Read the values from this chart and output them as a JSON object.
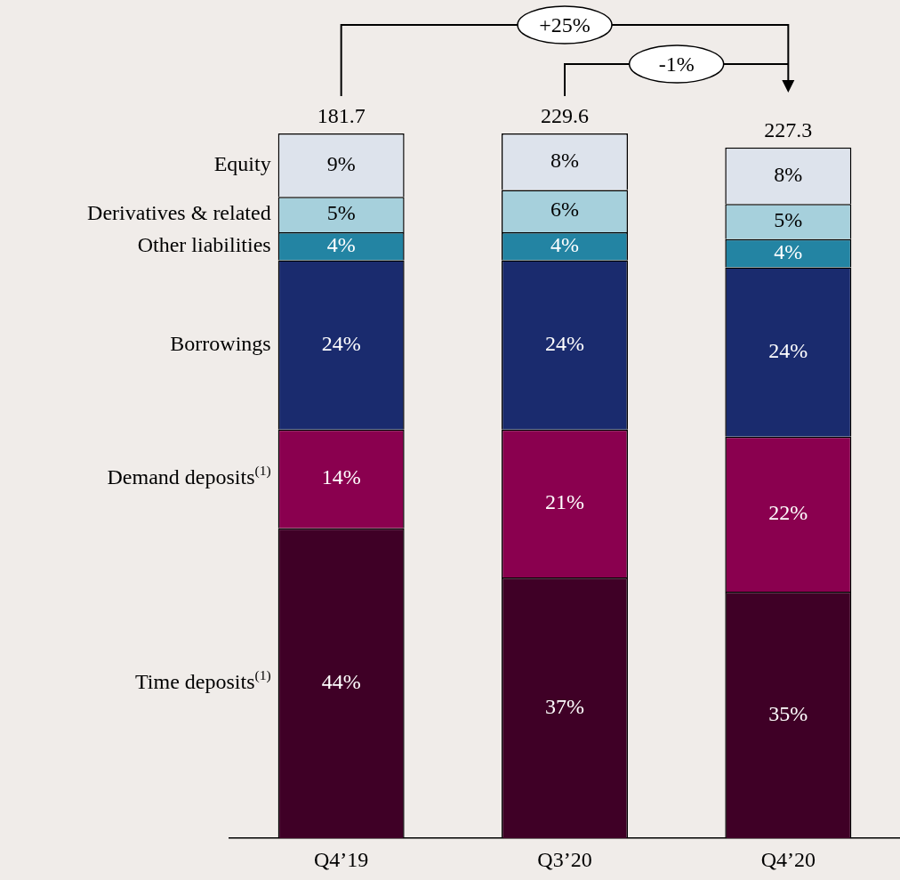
{
  "chart_data": {
    "type": "bar",
    "stacked": true,
    "categories": [
      "Q4’19",
      "Q3’20",
      "Q4’20"
    ],
    "series": [
      {
        "name": "Time deposits$^{(1)}$",
        "color": "#3f0026",
        "values": [
          44,
          37,
          35
        ],
        "value_labels": [
          "44%",
          "37%",
          "35%"
        ]
      },
      {
        "name": "Demand deposits$^{(1)}$",
        "color": "#8a004f",
        "values": [
          14,
          21,
          22
        ],
        "value_labels": [
          "14%",
          "21%",
          "22%"
        ]
      },
      {
        "name": "Borrowings",
        "color": "#1a2b6e",
        "values": [
          24,
          24,
          24
        ],
        "value_labels": [
          "24%",
          "24%",
          "24%"
        ]
      },
      {
        "name": "Other liabilities",
        "color": "#2384a3",
        "values": [
          4,
          4,
          4
        ],
        "value_labels": [
          "4%",
          "4%",
          "4%"
        ]
      },
      {
        "name": "Derivatives & related",
        "color": "#a6d0dc",
        "values": [
          5,
          6,
          5
        ],
        "value_labels": [
          "5%",
          "6%",
          "5%"
        ]
      },
      {
        "name": "Equity",
        "color": "#dde3ec",
        "values": [
          9,
          8,
          8
        ],
        "value_labels": [
          "9%",
          "8%",
          "8%"
        ]
      }
    ],
    "annotations": [
      "181.7",
      "229.6",
      "227.3",
      "+25%",
      "-1%"
    ]
  }
}
